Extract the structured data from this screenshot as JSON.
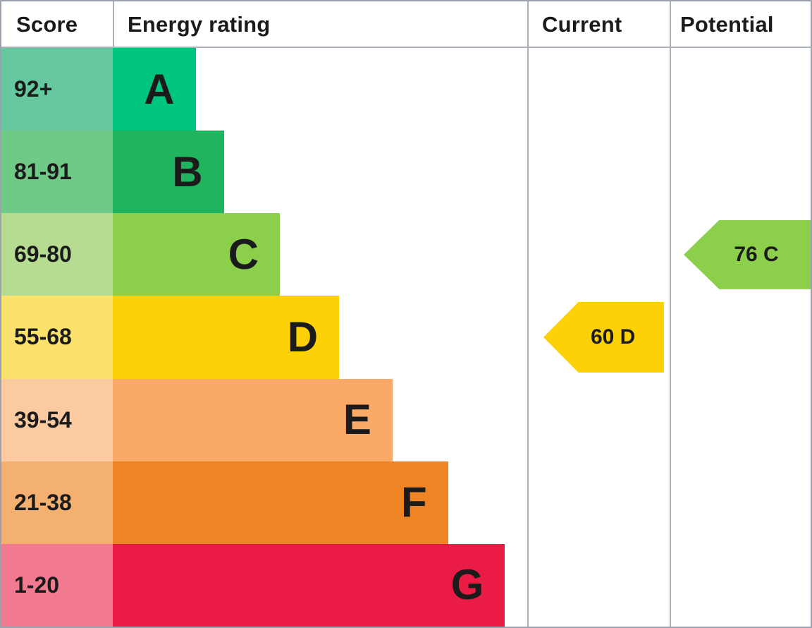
{
  "header": {
    "score": "Score",
    "energy_rating": "Energy rating",
    "current": "Current",
    "potential": "Potential"
  },
  "chart_data": {
    "type": "bar",
    "title": "Energy rating (EPC) chart",
    "orientation": "horizontal",
    "bands": [
      {
        "letter": "A",
        "score_range": "92+",
        "bar_color": "#00c57e",
        "score_bg": "#65c89e",
        "bar_width_pct": 20.0
      },
      {
        "letter": "B",
        "score_range": "81-91",
        "bar_color": "#20b45e",
        "score_bg": "#6fc987",
        "bar_width_pct": 26.8
      },
      {
        "letter": "C",
        "score_range": "69-80",
        "bar_color": "#8ccf4a",
        "score_bg": "#b5dc90",
        "bar_width_pct": 40.3
      },
      {
        "letter": "D",
        "score_range": "55-68",
        "bar_color": "#fdd108",
        "score_bg": "#fbe26c",
        "bar_width_pct": 54.6
      },
      {
        "letter": "E",
        "score_range": "39-54",
        "bar_color": "#faa967",
        "score_bg": "#fccaa1",
        "bar_width_pct": 67.5
      },
      {
        "letter": "F",
        "score_range": "21-38",
        "bar_color": "#ee8424",
        "score_bg": "#f4b071",
        "bar_width_pct": 80.9
      },
      {
        "letter": "G",
        "score_range": "1-20",
        "bar_color": "#ea1b45",
        "score_bg": "#f27a90",
        "bar_width_pct": 94.6
      }
    ],
    "current": {
      "label": "60 D",
      "value": 60,
      "band": "D",
      "color": "#fdd108"
    },
    "potential": {
      "label": "76 C",
      "value": 76,
      "band": "C",
      "color": "#8ccf4a"
    }
  },
  "colors": {
    "outer_border": "#9ba1ad",
    "grid_line": "#abafba",
    "text": "#1b1b1b"
  }
}
